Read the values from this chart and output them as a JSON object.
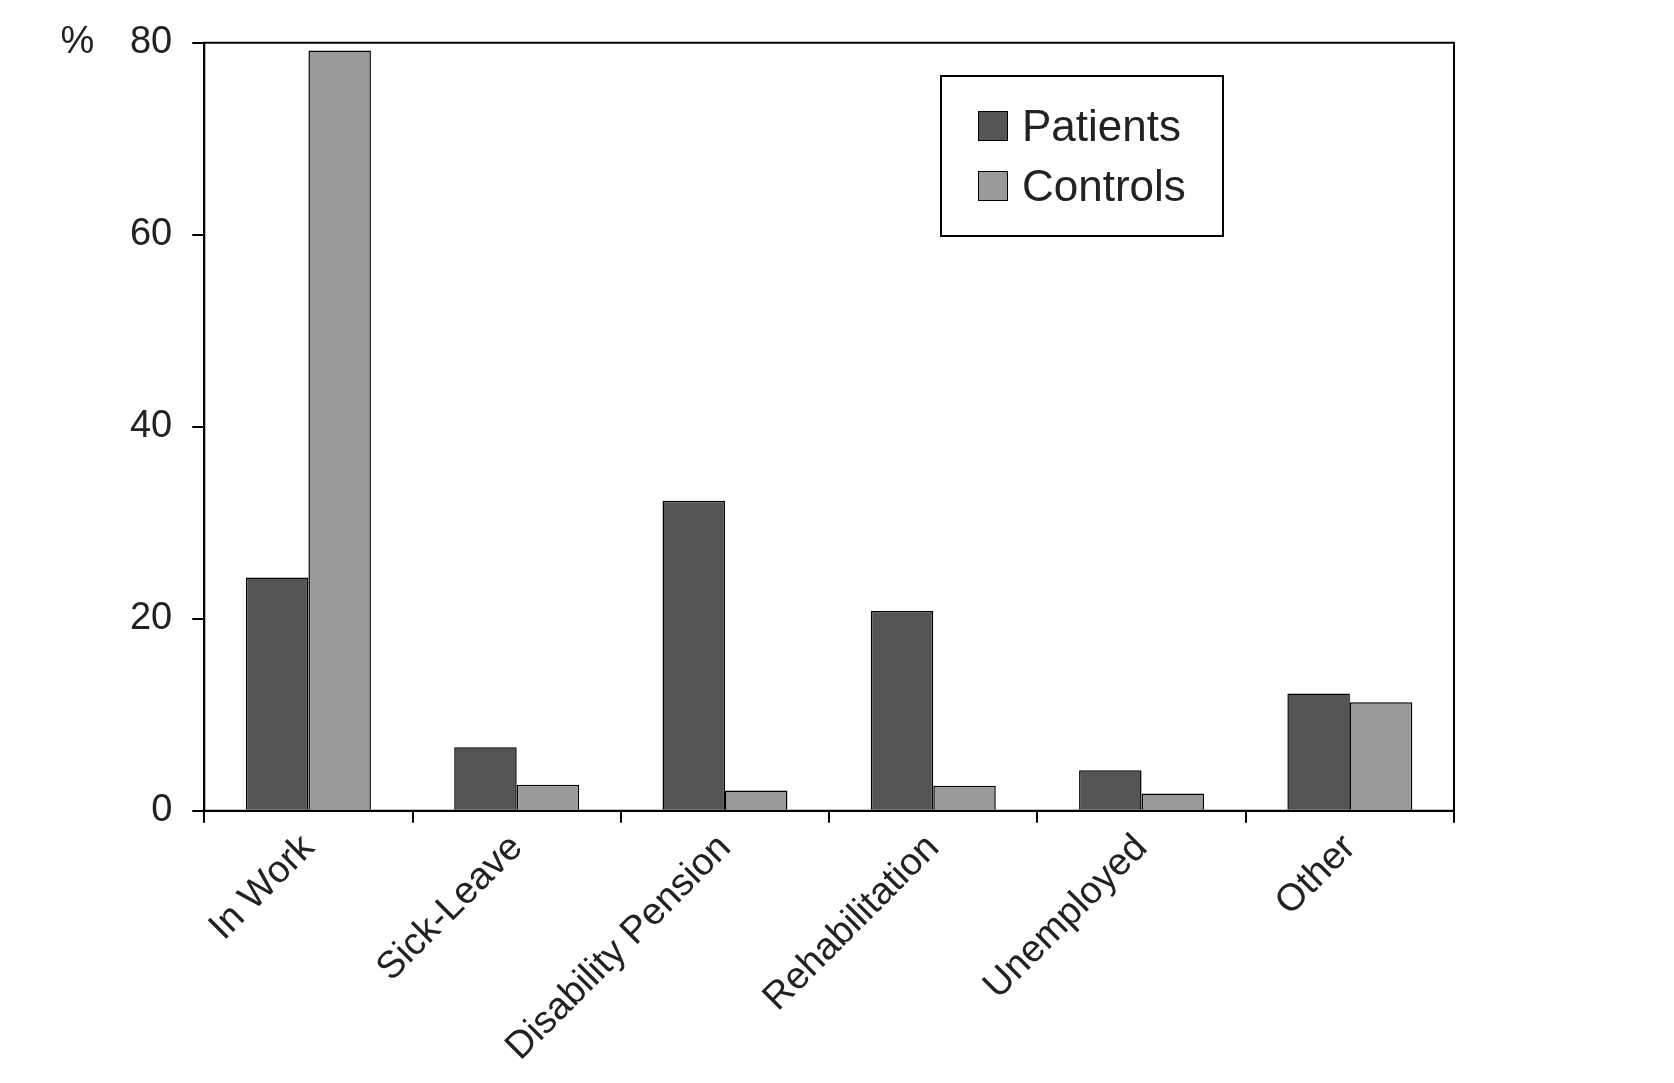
{
  "chart_data": {
    "type": "bar",
    "ylabel": "%",
    "categories": [
      "In Work",
      "Sick-Leave",
      "Disability Pension",
      "Rehabilitation",
      "Unemployed",
      "Other"
    ],
    "series": [
      {
        "name": "Patients",
        "color": "#555555",
        "values": [
          24.3,
          6.6,
          32.3,
          20.8,
          4.2,
          12.2
        ]
      },
      {
        "name": "Controls",
        "color": "#9a9a9a",
        "values": [
          79.2,
          2.7,
          2.1,
          2.6,
          1.8,
          11.3
        ]
      }
    ],
    "ylim": [
      0,
      80
    ],
    "yticks": [
      0,
      20,
      40,
      60,
      80
    ],
    "grid": false,
    "legend": "top right"
  }
}
